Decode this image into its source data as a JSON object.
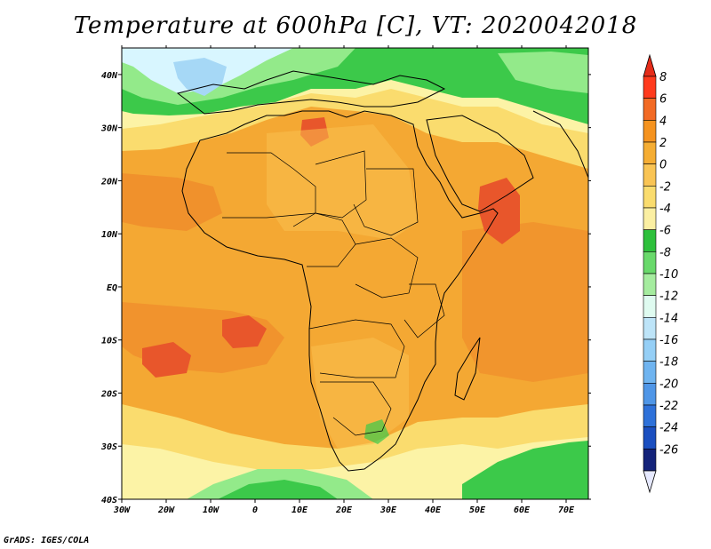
{
  "title": "Temperature at 600hPa [C], VT: 2020042018",
  "credit": "GrADS: IGES/COLA",
  "map": {
    "lon_range": [
      -30,
      75
    ],
    "lat_range": [
      -40,
      45
    ],
    "lon_ticks": [
      "30W",
      "20W",
      "10W",
      "0",
      "10E",
      "20E",
      "30E",
      "40E",
      "50E",
      "60E",
      "70E"
    ],
    "lat_ticks": [
      "40N",
      "30N",
      "20N",
      "10N",
      "EQ",
      "10S",
      "20S",
      "30S",
      "40S"
    ],
    "region_colors": {
      "cold_blue": "#a6d8f6",
      "pale_cyan": "#d8f6ff",
      "green": "#3cc94a",
      "light_green": "#93ea8a",
      "pale_yellow": "#fcf3a6",
      "yellow": "#fadc6e",
      "light_orange": "#f9c04f",
      "orange": "#f4a833",
      "warm_orange": "#ef8a2b",
      "hot": "#e8562b"
    }
  },
  "colorbar": {
    "labels": [
      "8",
      "6",
      "4",
      "2",
      "0",
      "-2",
      "-4",
      "-6",
      "-8",
      "-10",
      "-12",
      "-14",
      "-16",
      "-18",
      "-20",
      "-22",
      "-24",
      "-26"
    ],
    "colors": [
      "#ff3a1d",
      "#f26a24",
      "#f5931f",
      "#f5ad33",
      "#f9c454",
      "#fadc6e",
      "#fbefa2",
      "#2ec03c",
      "#69d96b",
      "#a5ec9f",
      "#dffbf0",
      "#bde4f8",
      "#95cff6",
      "#6fb4f0",
      "#4f96e7",
      "#2e71d9",
      "#1b4fc0",
      "#14237a"
    ],
    "top_arrow_color": "#e52c19",
    "bottom_arrow_color": "#e6e9ff"
  }
}
